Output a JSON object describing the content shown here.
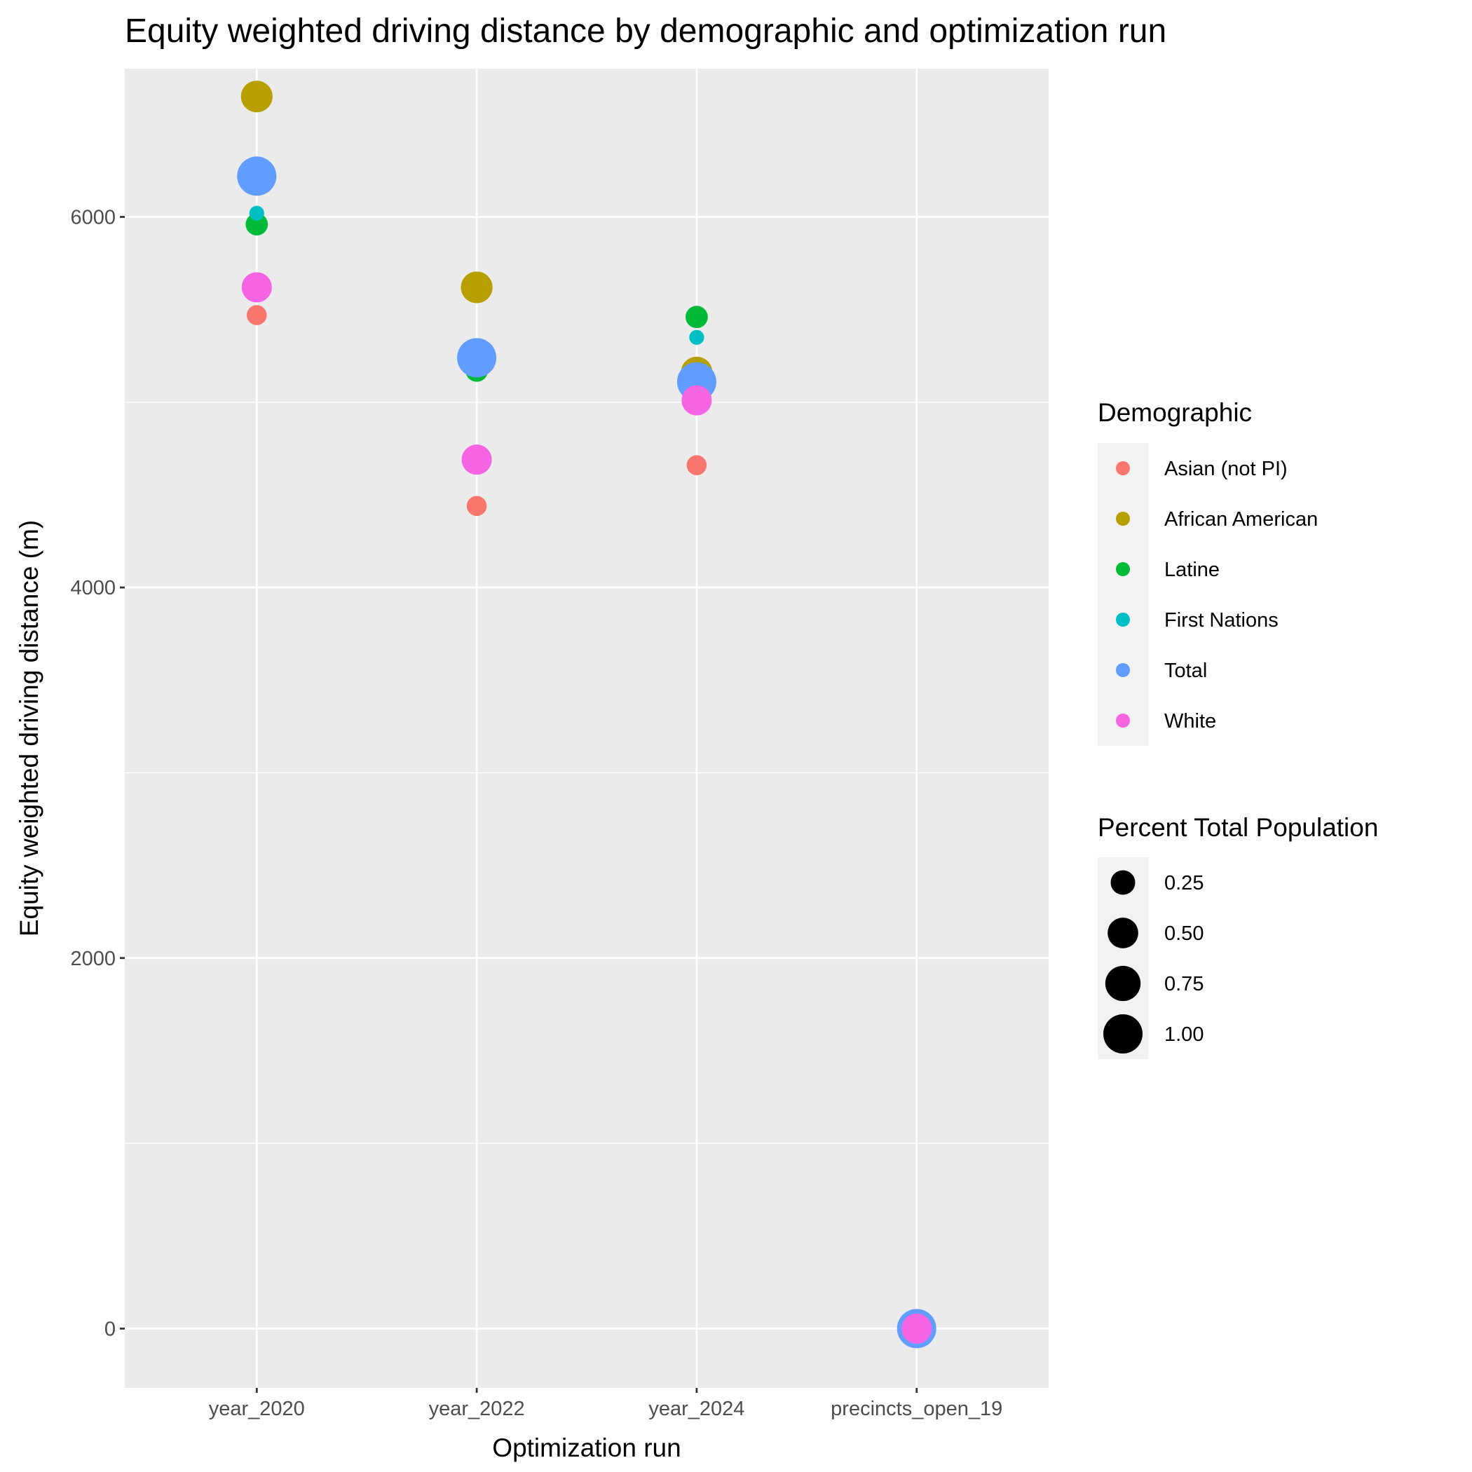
{
  "chart_data": {
    "type": "scatter",
    "title": "Equity weighted driving distance by demographic and optimization run",
    "xlabel": "Optimization run",
    "ylabel": "Equity weighted driving distance (m)",
    "categories": [
      "year_2020",
      "year_2022",
      "year_2024",
      "precincts_open_19"
    ],
    "ylim": [
      -320,
      6800
    ],
    "yticks": [
      0,
      2000,
      4000,
      6000
    ],
    "grid": true,
    "legend_position": "right",
    "color_legend_title": "Demographic",
    "size_legend_title": "Percent Total Population",
    "size_legend": [
      {
        "label": "0.25",
        "value": 0.25
      },
      {
        "label": "0.50",
        "value": 0.5
      },
      {
        "label": "0.75",
        "value": 0.75
      },
      {
        "label": "1.00",
        "value": 1.0
      }
    ],
    "series": [
      {
        "name": "Asian (not PI)",
        "color": "#F8766D",
        "size": 0.12,
        "values": [
          5470,
          4440,
          4660,
          0
        ]
      },
      {
        "name": "African American",
        "color": "#B79F00",
        "size": 0.55,
        "values": [
          6650,
          5620,
          5160,
          0
        ]
      },
      {
        "name": "Latine",
        "color": "#00BA38",
        "size": 0.18,
        "values": [
          5960,
          5170,
          5460,
          0
        ]
      },
      {
        "name": "First Nations",
        "color": "#00BFC4",
        "size": 0.03,
        "values": [
          6020,
          5210,
          5350,
          0
        ]
      },
      {
        "name": "Total",
        "color": "#619CFF",
        "size": 1.0,
        "values": [
          6220,
          5240,
          5110,
          0
        ]
      },
      {
        "name": "White",
        "color": "#F564E3",
        "size": 0.48,
        "values": [
          5620,
          4690,
          5010,
          0
        ]
      }
    ]
  }
}
